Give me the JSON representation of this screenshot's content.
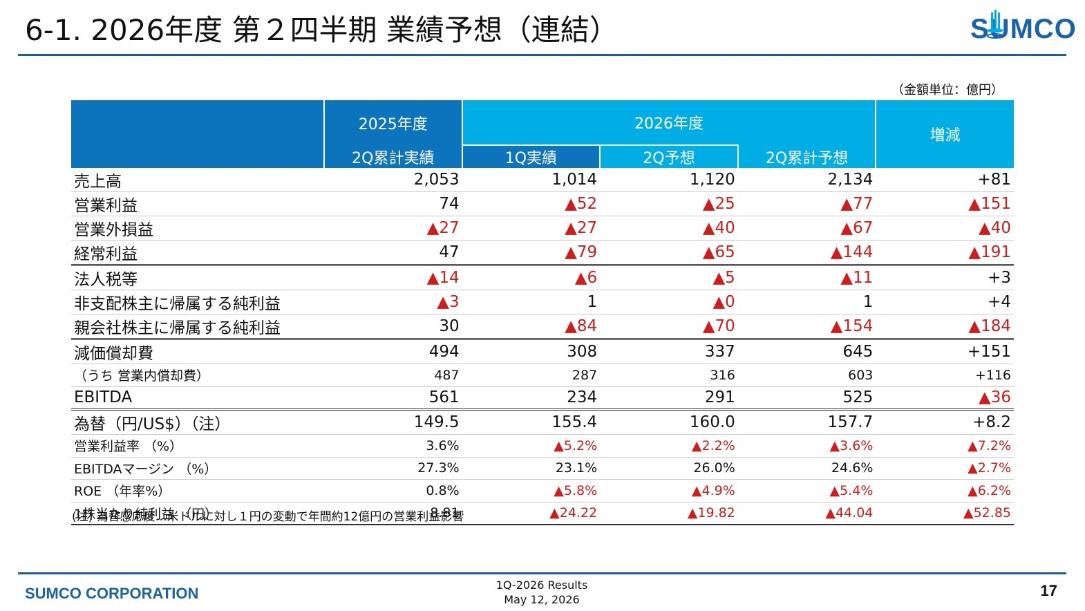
{
  "title": "6-1. 2026年度 第２四半期 業績予想（連結）",
  "logo": {
    "text": "SUMCO",
    "icon": "sumco-logo-icon",
    "brand_color": "#1a63a8"
  },
  "unit_note": "（金額単位：億円）",
  "table": {
    "header": {
      "fy2025": "2025年度",
      "fy2025_sub": "2Q累計実績",
      "fy2026": "2026年度",
      "fy2026_subs": [
        "1Q実績",
        "2Q予想",
        "2Q累計予想"
      ],
      "diff": "増減"
    },
    "rows": [
      {
        "label": "売上高",
        "values": [
          "2,053",
          "1,014",
          "1,120",
          "2,134",
          "+81"
        ],
        "style": "normal"
      },
      {
        "label": "営業利益",
        "values": [
          "74",
          "▲52",
          "▲25",
          "▲77",
          "▲151"
        ],
        "style": "normal"
      },
      {
        "label": "営業外損益",
        "values": [
          "▲27",
          "▲27",
          "▲40",
          "▲67",
          "▲40"
        ],
        "style": "normal"
      },
      {
        "label": "経常利益",
        "values": [
          "47",
          "▲79",
          "▲65",
          "▲144",
          "▲191"
        ],
        "style": "dbl"
      },
      {
        "label": "法人税等",
        "values": [
          "▲14",
          "▲6",
          "▲5",
          "▲11",
          "+3"
        ],
        "style": "normal"
      },
      {
        "label": "非支配株主に帰属する純利益",
        "values": [
          "▲3",
          "1",
          "▲0",
          "1",
          "+4"
        ],
        "style": "normal"
      },
      {
        "label": "親会社株主に帰属する純利益",
        "values": [
          "30",
          "▲84",
          "▲70",
          "▲154",
          "▲184"
        ],
        "style": "dbl"
      },
      {
        "label": "減価償却費",
        "values": [
          "494",
          "308",
          "337",
          "645",
          "+151"
        ],
        "style": "normal"
      },
      {
        "label": "（うち 営業内償却費）",
        "values": [
          "487",
          "287",
          "316",
          "603",
          "+116"
        ],
        "style": "small"
      },
      {
        "label": "EBITDA",
        "values": [
          "561",
          "234",
          "291",
          "525",
          "▲36"
        ],
        "style": "dbl"
      },
      {
        "label": "為替（円/US$）（注）",
        "values": [
          "149.5",
          "155.4",
          "160.0",
          "157.7",
          "+8.2"
        ],
        "style": "normal"
      },
      {
        "label": "営業利益率 （%）",
        "values": [
          "3.6%",
          "▲5.2%",
          "▲2.2%",
          "▲3.6%",
          "▲7.2%"
        ],
        "style": "small"
      },
      {
        "label": "EBITDAマージン （%）",
        "values": [
          "27.3%",
          "23.1%",
          "26.0%",
          "24.6%",
          "▲2.7%"
        ],
        "style": "small"
      },
      {
        "label": "ROE （年率%）",
        "values": [
          "0.8%",
          "▲5.8%",
          "▲4.9%",
          "▲5.4%",
          "▲6.2%"
        ],
        "style": "small"
      },
      {
        "label": "1株当たり純利益 （円）",
        "values": [
          "8.81",
          "▲24.22",
          "▲19.82",
          "▲44.04",
          "▲52.85"
        ],
        "style": "small-last"
      }
    ]
  },
  "note": "(注) 為替感応度…米ドルに対し１円の変動で年間約12億円の営業利益影響",
  "footer": {
    "company": "SUMCO CORPORATION",
    "report": "1Q-2026 Results",
    "date": "May 12, 2026",
    "page": "17"
  },
  "colors": {
    "header_dark": "#0b74bd",
    "header_light": "#00aee5",
    "negative": "#d11c1c",
    "rule": "#1b5f96"
  }
}
